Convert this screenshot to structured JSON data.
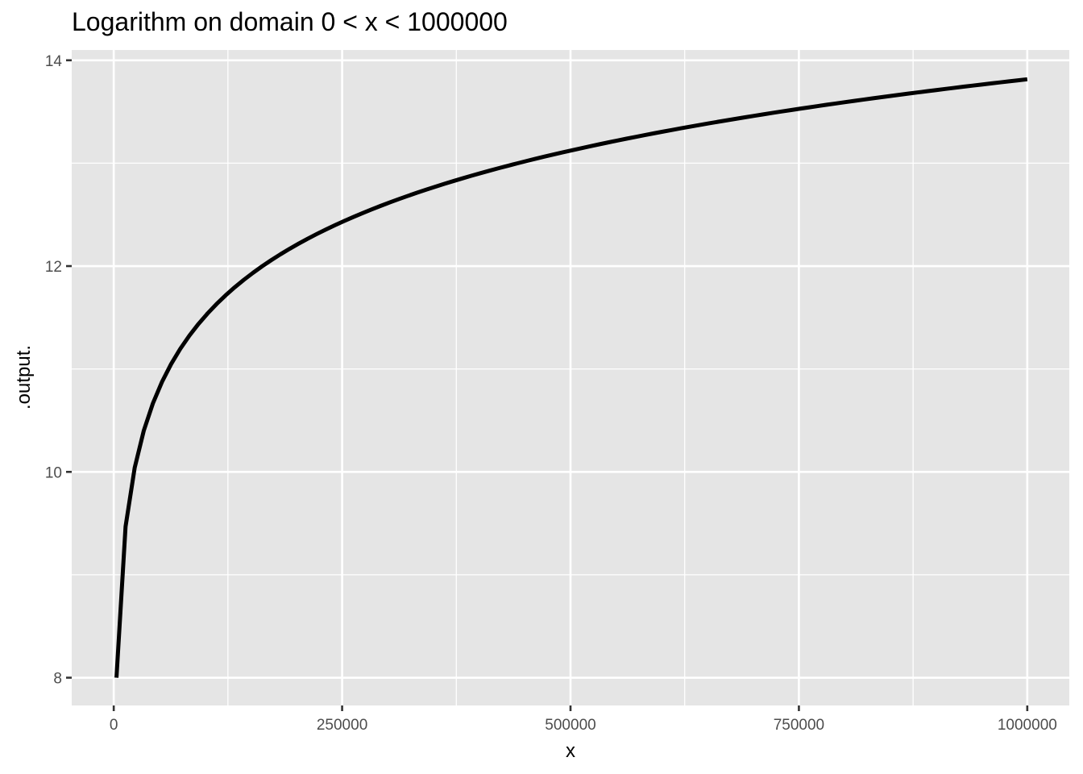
{
  "chart_data": {
    "type": "line",
    "title": "Logarithm on domain 0 < x < 1000000",
    "xlabel": "x",
    "ylabel": ".output.",
    "xlim": [
      -46000,
      1046000
    ],
    "ylim": [
      7.73,
      14.1
    ],
    "x_ticks": [
      0,
      250000,
      500000,
      750000,
      1000000
    ],
    "x_tick_labels": [
      "0",
      "250000",
      "500000",
      "750000",
      "1000000"
    ],
    "x_minor_ticks": [
      125000,
      375000,
      625000,
      875000
    ],
    "y_ticks": [
      8,
      10,
      12,
      14
    ],
    "y_tick_labels": [
      "8",
      "10",
      "12",
      "14"
    ],
    "y_minor_ticks": [
      9,
      11,
      13
    ],
    "grid": true,
    "legend": "none",
    "series": [
      {
        "function": "ln(x)",
        "x_range": [
          2981,
          1000000
        ],
        "num_points": 101,
        "color": "#000000"
      }
    ],
    "colors": {
      "panel_background": "#e5e5e5",
      "grid": "#ffffff",
      "line": "#000000",
      "tick_text": "#4d4d4d"
    }
  }
}
